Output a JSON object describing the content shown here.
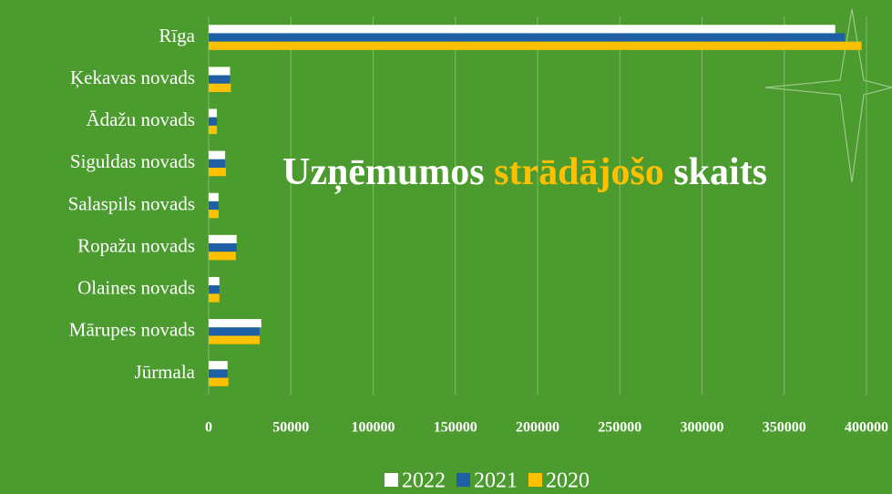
{
  "chart_data": {
    "type": "hbar",
    "title": [
      "Uzņēmumos",
      "strādājošo",
      "skaits"
    ],
    "title_color": "#ffffff",
    "title_highlight_color": "#ffc000",
    "categories": [
      "Rīga",
      "Ķekavas novads",
      "Ādažu novads",
      "Siguldas novads",
      "Salaspils novads",
      "Ropažu novads",
      "Olaines novads",
      "Mārupes novads",
      "Jūrmala"
    ],
    "series": [
      {
        "name": "2022",
        "color": "#ffffff",
        "values": [
          381000,
          13000,
          5000,
          10000,
          6000,
          17000,
          6500,
          32000,
          11500
        ]
      },
      {
        "name": "2021",
        "color": "#1f5fa6",
        "values": [
          387000,
          13000,
          5000,
          10000,
          6000,
          17000,
          6500,
          31000,
          11500
        ]
      },
      {
        "name": "2020",
        "color": "#ffc000",
        "values": [
          397000,
          13500,
          5000,
          10500,
          6000,
          16500,
          6500,
          31000,
          12000
        ]
      }
    ],
    "xlim": [
      0,
      400000
    ],
    "xticks": [
      0,
      50000,
      100000,
      150000,
      200000,
      250000,
      300000,
      350000,
      400000
    ],
    "grid": true,
    "legend": "bottom"
  }
}
